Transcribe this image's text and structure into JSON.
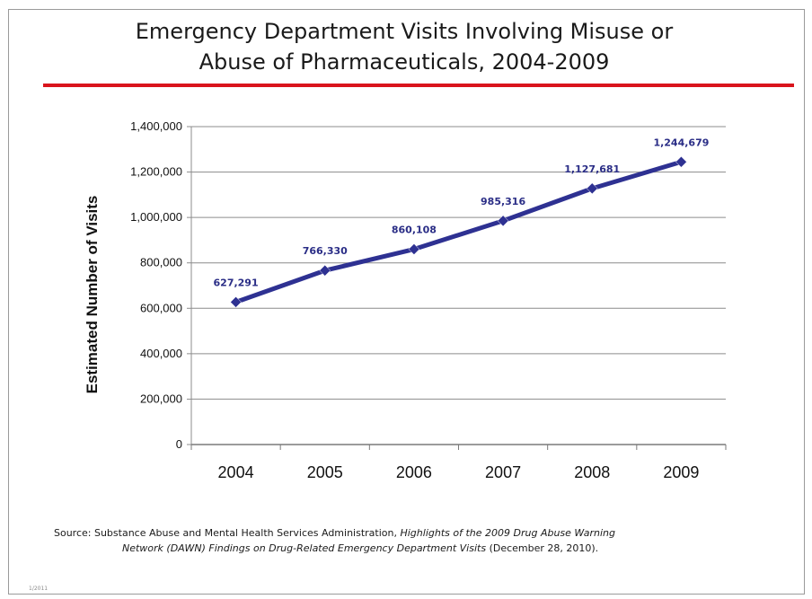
{
  "title_line1": "Emergency Department Visits Involving Misuse or",
  "title_line2": "Abuse of Pharmaceuticals, 2004-2009",
  "colors": {
    "rule": "#d9141c",
    "series": "#2e3192",
    "label": "#2a2d86",
    "grid": "#8c8c8c"
  },
  "chart_data": {
    "type": "line",
    "title": "Emergency Department Visits Involving Misuse or Abuse of Pharmaceuticals, 2004-2009",
    "xlabel": "",
    "ylabel": "Estimated Number of Visits",
    "categories": [
      "2004",
      "2005",
      "2006",
      "2007",
      "2008",
      "2009"
    ],
    "values": [
      627291,
      766330,
      860108,
      985316,
      1127681,
      1244679
    ],
    "data_labels": [
      "627,291",
      "766,330",
      "860,108",
      "985,316",
      "1,127,681",
      "1,244,679"
    ],
    "ylim": [
      0,
      1400000
    ],
    "yticks": [
      0,
      200000,
      400000,
      600000,
      800000,
      1000000,
      1200000,
      1400000
    ],
    "ytick_labels": [
      "0",
      "200,000",
      "400,000",
      "600,000",
      "800,000",
      "1,000,000",
      "1,200,000",
      "1,400,000"
    ],
    "grid": true,
    "legend": "none"
  },
  "source": {
    "prefix": "Source:  Substance Abuse and Mental Health Services Administration, ",
    "italic1": "Highlights of the 2009 Drug Abuse Warning",
    "italic2": "Network (DAWN) Findings on Drug-Related Emergency Department Visits",
    "suffix": " (December 28, 2010)."
  },
  "footnote": "1/2011"
}
